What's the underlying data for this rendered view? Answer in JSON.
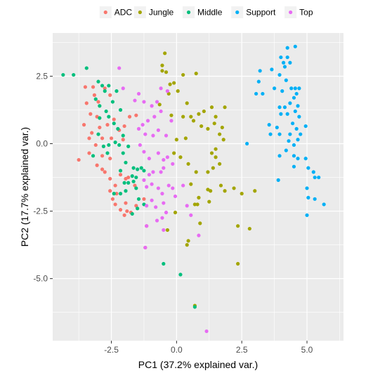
{
  "chart_data": {
    "type": "scatter",
    "xlabel": "PC1 (37.2% explained var.)",
    "ylabel": "PC2 (17.7% explained var.)",
    "xlim": [
      -4.75,
      6.4
    ],
    "ylim": [
      -7.3,
      4.1
    ],
    "x_ticks": [
      -2.5,
      0.0,
      2.5,
      5.0
    ],
    "x_tick_labels": [
      "-2.5",
      "0.0",
      "2.5",
      "5.0"
    ],
    "y_ticks": [
      2.5,
      0.0,
      -2.5,
      -5.0
    ],
    "y_tick_labels": [
      "2.5",
      "0.0",
      "-2.5",
      "-5.0"
    ],
    "grid": true,
    "panel_background": "#ebebeb",
    "legend_position": "top",
    "series": [
      {
        "name": "ADC",
        "color": "#F8766D",
        "points": [
          [
            -3.5,
            2.1
          ],
          [
            -3.2,
            2.1
          ],
          [
            -3.15,
            1.8
          ],
          [
            -3.45,
            1.5
          ],
          [
            -3.0,
            1.55
          ],
          [
            -2.75,
            2.05
          ],
          [
            -2.55,
            1.8
          ],
          [
            -3.3,
            1.1
          ],
          [
            -3.05,
            1.0
          ],
          [
            -3.55,
            0.7
          ],
          [
            -3.25,
            0.4
          ],
          [
            -2.95,
            0.6
          ],
          [
            -2.65,
            0.7
          ],
          [
            -2.4,
            0.9
          ],
          [
            -2.2,
            0.5
          ],
          [
            -2.0,
            0.65
          ],
          [
            -3.35,
            0.2
          ],
          [
            -3.1,
            -0.05
          ],
          [
            -2.85,
            0.2
          ],
          [
            -2.5,
            0.2
          ],
          [
            -2.05,
            0.15
          ],
          [
            -1.8,
            1.0
          ],
          [
            -1.55,
            1.05
          ],
          [
            -3.75,
            -0.6
          ],
          [
            -3.35,
            -0.35
          ],
          [
            -2.85,
            -0.45
          ],
          [
            -2.55,
            -0.55
          ],
          [
            -3.05,
            -0.8
          ],
          [
            -2.85,
            -0.95
          ],
          [
            -2.75,
            -1.05
          ],
          [
            -2.55,
            -1.3
          ],
          [
            -2.35,
            -1.55
          ],
          [
            -2.15,
            -1.15
          ],
          [
            -1.95,
            -1.3
          ],
          [
            -1.85,
            -1.25
          ],
          [
            -2.3,
            -1.85
          ],
          [
            -2.55,
            -1.75
          ],
          [
            -2.45,
            -2.05
          ],
          [
            -2.35,
            -2.25
          ],
          [
            -2.15,
            -2.45
          ],
          [
            -2.0,
            -2.65
          ],
          [
            -1.75,
            -2.55
          ],
          [
            -1.9,
            -2.5
          ],
          [
            -1.95,
            -2.2
          ],
          [
            -1.6,
            -1.55
          ],
          [
            -1.55,
            -2.3
          ],
          [
            -1.25,
            -2.05
          ],
          [
            -1.15,
            -3.05
          ],
          [
            -1.2,
            -3.85
          ]
        ]
      },
      {
        "name": "Jungle",
        "color": "#A3A500",
        "points": [
          [
            -0.45,
            3.35
          ],
          [
            -0.55,
            2.9
          ],
          [
            -0.55,
            2.7
          ],
          [
            -0.4,
            2.65
          ],
          [
            -0.25,
            2.2
          ],
          [
            -0.1,
            2.25
          ],
          [
            0.25,
            2.55
          ],
          [
            0.75,
            2.6
          ],
          [
            -0.3,
            1.85
          ],
          [
            0.05,
            1.95
          ],
          [
            0.4,
            1.5
          ],
          [
            -0.65,
            1.45
          ],
          [
            -0.2,
            1.05
          ],
          [
            0.25,
            1.0
          ],
          [
            0.55,
            1.0
          ],
          [
            0.85,
            1.1
          ],
          [
            1.05,
            1.2
          ],
          [
            1.35,
            1.35
          ],
          [
            1.5,
            1.0
          ],
          [
            1.85,
            1.35
          ],
          [
            0.0,
            0.15
          ],
          [
            0.35,
            0.2
          ],
          [
            0.65,
            0.85
          ],
          [
            0.95,
            0.65
          ],
          [
            1.2,
            0.55
          ],
          [
            1.45,
            0.75
          ],
          [
            1.65,
            0.35
          ],
          [
            1.75,
            0.6
          ],
          [
            1.8,
            0.15
          ],
          [
            1.5,
            -0.2
          ],
          [
            1.35,
            -0.35
          ],
          [
            1.5,
            -0.5
          ],
          [
            1.65,
            -0.75
          ],
          [
            1.4,
            -0.9
          ],
          [
            1.2,
            -1.05
          ],
          [
            0.75,
            -1.05
          ],
          [
            0.45,
            -0.75
          ],
          [
            0.15,
            -0.5
          ],
          [
            -0.1,
            -0.35
          ],
          [
            0.55,
            -1.5
          ],
          [
            0.85,
            -2.0
          ],
          [
            1.2,
            -1.7
          ],
          [
            1.3,
            -1.75
          ],
          [
            1.7,
            -1.55
          ],
          [
            1.85,
            -1.75
          ],
          [
            2.2,
            -1.65
          ],
          [
            2.5,
            -1.85
          ],
          [
            3.0,
            -1.75
          ],
          [
            1.25,
            -2.15
          ],
          [
            0.8,
            -2.25
          ],
          [
            0.9,
            -2.95
          ],
          [
            0.7,
            -2.25
          ],
          [
            -0.05,
            -2.55
          ],
          [
            -0.35,
            -3.2
          ],
          [
            0.45,
            -3.6
          ],
          [
            0.4,
            -3.75
          ],
          [
            2.35,
            -3.05
          ],
          [
            2.8,
            -3.15
          ],
          [
            2.35,
            -4.45
          ],
          [
            0.7,
            -6.0
          ]
        ]
      },
      {
        "name": "Middle",
        "color": "#00BF7D",
        "points": [
          [
            -4.35,
            2.55
          ],
          [
            -3.95,
            2.55
          ],
          [
            -3.45,
            2.8
          ],
          [
            -3.0,
            2.3
          ],
          [
            -2.85,
            2.15
          ],
          [
            -2.75,
            1.95
          ],
          [
            -2.6,
            2.15
          ],
          [
            -2.3,
            1.95
          ],
          [
            -2.45,
            1.55
          ],
          [
            -2.15,
            1.25
          ],
          [
            -2.7,
            1.2
          ],
          [
            -2.95,
            1.4
          ],
          [
            -3.1,
            1.65
          ],
          [
            -2.95,
            0.95
          ],
          [
            -2.6,
            1.0
          ],
          [
            -2.4,
            0.75
          ],
          [
            -2.25,
            0.55
          ],
          [
            -2.05,
            0.3
          ],
          [
            -2.35,
            0.05
          ],
          [
            -2.2,
            -0.05
          ],
          [
            -2.6,
            -0.05
          ],
          [
            -2.8,
            -0.1
          ],
          [
            -3.0,
            0.35
          ],
          [
            -3.2,
            -0.45
          ],
          [
            -2.65,
            -0.35
          ],
          [
            -2.05,
            -0.35
          ],
          [
            -1.85,
            -0.1
          ],
          [
            -1.95,
            -0.7
          ],
          [
            -1.65,
            -0.9
          ],
          [
            -1.5,
            -0.95
          ],
          [
            -1.35,
            -0.9
          ],
          [
            -1.25,
            -1.0
          ],
          [
            -1.55,
            -1.25
          ],
          [
            -1.7,
            -1.2
          ],
          [
            -2.15,
            -1.0
          ],
          [
            -2.0,
            -1.45
          ],
          [
            -1.85,
            -1.45
          ],
          [
            -1.65,
            -1.4
          ],
          [
            -1.55,
            -1.65
          ],
          [
            -1.95,
            -1.75
          ],
          [
            -2.15,
            -1.85
          ],
          [
            -2.4,
            -1.85
          ],
          [
            -1.45,
            -2.05
          ],
          [
            -1.25,
            -2.25
          ],
          [
            -1.5,
            -2.4
          ],
          [
            -1.7,
            -2.6
          ],
          [
            -0.5,
            -4.45
          ],
          [
            0.15,
            -4.85
          ],
          [
            0.7,
            -6.05
          ]
        ]
      },
      {
        "name": "Support",
        "color": "#00B0F6",
        "points": [
          [
            4.55,
            3.6
          ],
          [
            4.25,
            3.2
          ],
          [
            4.0,
            3.2
          ],
          [
            4.1,
            3.0
          ],
          [
            4.35,
            3.0
          ],
          [
            4.15,
            2.85
          ],
          [
            3.95,
            2.55
          ],
          [
            3.65,
            2.75
          ],
          [
            3.2,
            2.7
          ],
          [
            3.15,
            2.3
          ],
          [
            3.05,
            1.85
          ],
          [
            3.3,
            1.85
          ],
          [
            3.75,
            2.05
          ],
          [
            4.2,
            2.35
          ],
          [
            4.4,
            2.05
          ],
          [
            4.05,
            1.95
          ],
          [
            4.55,
            2.05
          ],
          [
            4.6,
            1.85
          ],
          [
            4.7,
            2.05
          ],
          [
            4.5,
            1.7
          ],
          [
            4.35,
            1.5
          ],
          [
            4.15,
            1.35
          ],
          [
            3.95,
            1.35
          ],
          [
            4.0,
            1.1
          ],
          [
            4.25,
            1.1
          ],
          [
            4.55,
            1.2
          ],
          [
            4.65,
            1.4
          ],
          [
            4.7,
            1.0
          ],
          [
            4.45,
            0.75
          ],
          [
            4.6,
            0.55
          ],
          [
            4.35,
            0.35
          ],
          [
            4.75,
            0.35
          ],
          [
            4.65,
            0.15
          ],
          [
            4.95,
            0.65
          ],
          [
            3.85,
            0.6
          ],
          [
            3.55,
            0.7
          ],
          [
            3.6,
            0.35
          ],
          [
            3.95,
            0.35
          ],
          [
            4.3,
            0.1
          ],
          [
            4.5,
            -0.05
          ],
          [
            4.2,
            -0.25
          ],
          [
            3.95,
            -0.45
          ],
          [
            4.5,
            -0.45
          ],
          [
            4.65,
            -0.55
          ],
          [
            4.95,
            -0.55
          ],
          [
            5.05,
            -0.9
          ],
          [
            4.5,
            -0.85
          ],
          [
            5.25,
            -1.05
          ],
          [
            5.3,
            -1.25
          ],
          [
            5.45,
            -1.25
          ],
          [
            5.0,
            -1.65
          ],
          [
            5.05,
            -2.0
          ],
          [
            5.3,
            -2.05
          ],
          [
            5.65,
            -2.25
          ],
          [
            5.0,
            -2.65
          ],
          [
            2.7,
            0.0
          ],
          [
            3.9,
            -1.35
          ],
          [
            4.25,
            3.55
          ]
        ]
      },
      {
        "name": "Top",
        "color": "#E76BF3",
        "points": [
          [
            -2.2,
            2.8
          ],
          [
            -2.05,
            2.05
          ],
          [
            -1.6,
            1.6
          ],
          [
            -1.45,
            1.85
          ],
          [
            -1.25,
            1.55
          ],
          [
            -0.95,
            1.4
          ],
          [
            -0.75,
            1.55
          ],
          [
            -0.6,
            2.05
          ],
          [
            -0.35,
            1.95
          ],
          [
            -0.6,
            1.2
          ],
          [
            -0.85,
            1.0
          ],
          [
            -1.1,
            0.85
          ],
          [
            -1.3,
            0.7
          ],
          [
            -1.45,
            0.55
          ],
          [
            -1.2,
            0.35
          ],
          [
            -0.9,
            0.3
          ],
          [
            -0.7,
            0.5
          ],
          [
            -0.4,
            0.3
          ],
          [
            -0.2,
            0.85
          ],
          [
            -1.4,
            -0.05
          ],
          [
            -1.25,
            -0.3
          ],
          [
            -1.05,
            -0.55
          ],
          [
            -0.7,
            -0.35
          ],
          [
            -0.5,
            -0.6
          ],
          [
            -0.35,
            -0.5
          ],
          [
            -0.15,
            -0.75
          ],
          [
            -0.5,
            -0.9
          ],
          [
            -0.6,
            -1.05
          ],
          [
            -0.9,
            -1.05
          ],
          [
            -1.05,
            -1.15
          ],
          [
            -1.25,
            -1.35
          ],
          [
            -1.15,
            -1.6
          ],
          [
            -0.95,
            -1.5
          ],
          [
            -0.7,
            -1.65
          ],
          [
            -0.55,
            -1.85
          ],
          [
            -0.3,
            -1.55
          ],
          [
            -0.15,
            -1.65
          ],
          [
            -0.5,
            -2.2
          ],
          [
            -0.8,
            -2.35
          ],
          [
            -0.95,
            -2.1
          ],
          [
            -1.15,
            -2.3
          ],
          [
            -0.4,
            -2.55
          ],
          [
            -0.55,
            -2.75
          ],
          [
            -0.75,
            -2.85
          ],
          [
            -0.5,
            -3.2
          ],
          [
            -1.15,
            -3.05
          ],
          [
            -0.05,
            -1.95
          ],
          [
            0.25,
            -1.55
          ],
          [
            0.4,
            -2.3
          ],
          [
            0.55,
            -2.65
          ],
          [
            0.85,
            -3.4
          ],
          [
            1.15,
            -6.95
          ],
          [
            -1.2,
            -3.85
          ]
        ]
      }
    ]
  }
}
